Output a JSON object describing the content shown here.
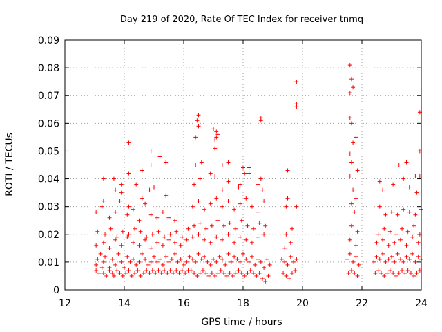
{
  "chart_data": {
    "type": "scatter",
    "title": "Day 219 of 2020, Rate Of TEC Index for receiver tnmq",
    "xlabel": "GPS time / hours",
    "ylabel": "ROTI / TECUs",
    "xlim": [
      12,
      24
    ],
    "ylim": [
      0,
      0.09
    ],
    "xticks": [
      "12",
      "14",
      "16",
      "18",
      "20",
      "22",
      "24"
    ],
    "yticks": [
      "0",
      "0.01",
      "0.02",
      "0.03",
      "0.04",
      "0.05",
      "0.06",
      "0.07",
      "0.08",
      "0.09"
    ],
    "grid": true,
    "marker": "+",
    "color": "#ff0000",
    "series": [
      {
        "x": [
          13.05,
          13.1,
          13.2,
          13.3,
          13.35,
          13.5,
          13.6,
          13.7,
          13.8,
          13.9,
          14.0,
          14.1,
          14.2,
          14.3,
          14.4,
          14.5,
          14.6,
          14.7,
          14.8,
          14.9,
          15.0,
          15.1,
          15.2,
          15.3,
          15.4,
          15.5,
          15.6,
          15.7,
          15.8,
          15.9,
          16.0,
          16.1,
          16.2,
          16.3,
          16.4,
          16.5,
          16.6,
          16.7,
          16.8,
          16.9,
          17.0,
          17.1,
          17.2,
          17.3,
          17.4,
          17.5,
          17.6,
          17.7,
          17.8,
          17.9,
          18.0,
          18.1,
          18.2,
          18.3,
          18.4,
          18.5,
          18.6,
          18.7,
          18.8,
          18.9,
          19.3,
          19.4,
          19.5,
          19.6,
          19.7,
          19.8,
          21.5,
          21.6,
          21.7,
          21.8,
          21.9,
          22.4,
          22.5,
          22.6,
          22.7,
          22.8,
          22.9,
          23.0,
          23.1,
          23.2,
          23.3,
          23.4,
          23.5,
          23.6,
          23.7,
          23.8,
          23.9,
          24.0,
          13.05,
          13.15,
          13.25,
          13.3,
          13.4,
          13.5,
          13.6,
          13.65,
          13.75,
          13.85,
          13.95,
          14.05,
          14.15,
          14.25,
          14.35,
          14.45,
          14.55,
          14.65,
          14.75,
          14.85,
          14.95,
          15.05,
          15.15,
          15.25,
          15.35,
          15.45,
          15.55,
          15.65,
          15.75,
          15.85,
          15.95,
          16.05,
          16.15,
          16.25,
          16.35,
          16.45,
          16.55,
          16.65,
          16.75,
          16.85,
          16.95,
          17.05,
          17.15,
          17.25,
          17.35,
          17.45,
          17.55,
          17.65,
          17.75,
          17.85,
          17.95,
          18.05,
          18.15,
          18.25,
          18.35,
          18.45,
          18.55,
          18.65,
          18.75,
          18.85,
          19.35,
          19.45,
          19.55,
          19.65,
          19.75,
          21.55,
          21.65,
          21.75,
          21.85,
          22.45,
          22.55,
          22.65,
          22.75,
          22.85,
          22.95,
          23.05,
          23.15,
          23.25,
          23.35,
          23.45,
          23.55,
          23.65,
          23.75,
          23.85,
          23.95,
          13.05,
          13.3,
          13.5,
          13.7,
          13.9,
          14.1,
          14.3,
          14.5,
          14.7,
          14.9,
          15.1,
          15.3,
          15.5,
          15.7,
          15.9,
          16.1,
          16.3,
          16.5,
          16.7,
          16.9,
          17.1,
          17.3,
          17.5,
          17.7,
          17.9,
          18.1,
          18.3,
          18.5,
          18.7,
          19.4,
          19.6,
          21.6,
          21.8,
          22.5,
          22.7,
          22.9,
          23.1,
          23.3,
          23.5,
          23.7,
          23.9,
          13.1,
          13.35,
          13.55,
          13.75,
          13.95,
          14.15,
          14.35,
          14.55,
          14.75,
          14.95,
          15.15,
          15.35,
          15.55,
          15.75,
          15.95,
          16.15,
          16.35,
          16.55,
          16.75,
          16.95,
          17.15,
          17.35,
          17.55,
          17.75,
          17.95,
          18.15,
          18.35,
          18.55,
          18.75,
          19.45,
          19.65,
          21.65,
          21.85,
          22.55,
          22.75,
          22.95,
          23.15,
          23.35,
          23.55,
          23.75,
          23.95,
          13.05,
          13.25,
          13.5,
          13.7,
          13.85,
          14.1,
          14.3,
          14.5,
          14.7,
          14.9,
          15.1,
          15.3,
          15.5,
          15.7,
          16.3,
          16.5,
          16.7,
          16.9,
          17.1,
          17.3,
          17.5,
          17.7,
          17.9,
          18.1,
          18.3,
          18.5,
          18.7,
          19.45,
          21.65,
          21.75,
          22.6,
          22.8,
          23.0,
          23.2,
          23.4,
          23.6,
          23.8,
          24.0,
          13.3,
          13.7,
          13.9,
          14.15,
          14.4,
          14.6,
          14.85,
          15.0,
          15.4,
          16.35,
          16.55,
          16.9,
          17.05,
          17.3,
          17.5,
          17.85,
          18.0,
          18.2,
          18.5,
          18.65,
          19.5,
          19.8,
          21.6,
          21.7,
          21.8,
          22.7,
          23.05,
          23.4,
          23.6,
          23.85,
          13.3,
          13.65,
          13.9,
          14.15,
          14.6,
          14.9,
          15.2,
          15.4,
          16.4,
          16.6,
          17.05,
          17.1,
          17.3,
          17.5,
          17.9,
          18.05,
          18.2,
          18.6,
          19.5,
          21.65,
          21.85,
          22.6,
          23.25,
          23.5,
          23.8,
          23.95,
          14.15,
          14.9,
          16.4,
          16.5,
          17.05,
          17.15,
          18.6,
          19.8,
          21.6,
          21.7,
          21.8,
          23.95,
          16.45,
          16.5,
          17.1,
          17.0,
          18.6,
          19.8,
          21.6,
          21.65,
          23.95,
          19.8,
          21.6,
          21.65,
          21.7,
          21.6
        ],
        "y": [
          0.009,
          0.011,
          0.013,
          0.01,
          0.012,
          0.008,
          0.011,
          0.009,
          0.013,
          0.01,
          0.008,
          0.012,
          0.01,
          0.011,
          0.009,
          0.01,
          0.013,
          0.011,
          0.009,
          0.01,
          0.012,
          0.01,
          0.011,
          0.009,
          0.012,
          0.01,
          0.011,
          0.013,
          0.01,
          0.011,
          0.009,
          0.01,
          0.012,
          0.011,
          0.01,
          0.013,
          0.011,
          0.012,
          0.01,
          0.009,
          0.011,
          0.01,
          0.012,
          0.011,
          0.009,
          0.013,
          0.01,
          0.012,
          0.011,
          0.01,
          0.013,
          0.011,
          0.01,
          0.012,
          0.009,
          0.011,
          0.01,
          0.008,
          0.011,
          0.009,
          0.011,
          0.01,
          0.009,
          0.012,
          0.01,
          0.011,
          0.011,
          0.013,
          0.01,
          0.012,
          0.009,
          0.01,
          0.012,
          0.011,
          0.013,
          0.01,
          0.011,
          0.012,
          0.01,
          0.013,
          0.011,
          0.01,
          0.012,
          0.011,
          0.013,
          0.01,
          0.012,
          0.011,
          0.007,
          0.006,
          0.008,
          0.006,
          0.005,
          0.007,
          0.006,
          0.005,
          0.007,
          0.006,
          0.005,
          0.006,
          0.007,
          0.005,
          0.006,
          0.007,
          0.005,
          0.006,
          0.007,
          0.006,
          0.007,
          0.006,
          0.007,
          0.006,
          0.007,
          0.006,
          0.007,
          0.006,
          0.007,
          0.006,
          0.007,
          0.006,
          0.007,
          0.007,
          0.006,
          0.005,
          0.006,
          0.007,
          0.006,
          0.005,
          0.006,
          0.005,
          0.006,
          0.007,
          0.006,
          0.005,
          0.006,
          0.005,
          0.006,
          0.007,
          0.006,
          0.005,
          0.006,
          0.007,
          0.006,
          0.005,
          0.006,
          0.004,
          0.003,
          0.005,
          0.006,
          0.005,
          0.004,
          0.006,
          0.007,
          0.006,
          0.007,
          0.006,
          0.005,
          0.006,
          0.007,
          0.006,
          0.005,
          0.006,
          0.007,
          0.006,
          0.005,
          0.006,
          0.007,
          0.006,
          0.007,
          0.006,
          0.005,
          0.006,
          0.007,
          0.016,
          0.017,
          0.015,
          0.018,
          0.016,
          0.019,
          0.017,
          0.016,
          0.018,
          0.015,
          0.017,
          0.016,
          0.018,
          0.017,
          0.016,
          0.018,
          0.019,
          0.02,
          0.018,
          0.017,
          0.019,
          0.018,
          0.02,
          0.017,
          0.019,
          0.018,
          0.017,
          0.019,
          0.02,
          0.015,
          0.017,
          0.018,
          0.016,
          0.017,
          0.018,
          0.016,
          0.017,
          0.018,
          0.016,
          0.019,
          0.017,
          0.021,
          0.02,
          0.022,
          0.019,
          0.021,
          0.02,
          0.022,
          0.021,
          0.019,
          0.02,
          0.021,
          0.019,
          0.02,
          0.021,
          0.019,
          0.022,
          0.023,
          0.024,
          0.022,
          0.023,
          0.025,
          0.023,
          0.024,
          0.022,
          0.025,
          0.023,
          0.022,
          0.024,
          0.023,
          0.02,
          0.022,
          0.023,
          0.021,
          0.02,
          0.022,
          0.021,
          0.02,
          0.022,
          0.021,
          0.023,
          0.02,
          0.028,
          0.03,
          0.026,
          0.028,
          0.032,
          0.027,
          0.029,
          0.025,
          0.031,
          0.027,
          0.026,
          0.028,
          0.026,
          0.025,
          0.03,
          0.032,
          0.029,
          0.031,
          0.033,
          0.03,
          0.032,
          0.029,
          0.031,
          0.033,
          0.03,
          0.028,
          0.032,
          0.03,
          0.031,
          0.028,
          0.03,
          0.027,
          0.028,
          0.027,
          0.029,
          0.028,
          0.027,
          0.029,
          0.032,
          0.036,
          0.035,
          0.03,
          0.038,
          0.033,
          0.036,
          0.037,
          0.034,
          0.038,
          0.04,
          0.042,
          0.041,
          0.036,
          0.039,
          0.037,
          0.044,
          0.042,
          0.038,
          0.036,
          0.033,
          0.03,
          0.041,
          0.036,
          0.033,
          0.036,
          0.038,
          0.04,
          0.037,
          0.035,
          0.04,
          0.04,
          0.038,
          0.042,
          0.043,
          0.045,
          0.048,
          0.046,
          0.045,
          0.046,
          0.051,
          0.055,
          0.045,
          0.046,
          0.038,
          0.042,
          0.044,
          0.04,
          0.043,
          0.046,
          0.043,
          0.039,
          0.045,
          0.046,
          0.041,
          0.041,
          0.053,
          0.05,
          0.055,
          0.059,
          0.054,
          0.056,
          0.062,
          0.066,
          0.049,
          0.053,
          0.055,
          0.05,
          0.061,
          0.063,
          0.057,
          0.058,
          0.061,
          0.075,
          0.062,
          0.06,
          0.064,
          0.067,
          0.071,
          0.076,
          0.073,
          0.081
        ]
      }
    ]
  }
}
